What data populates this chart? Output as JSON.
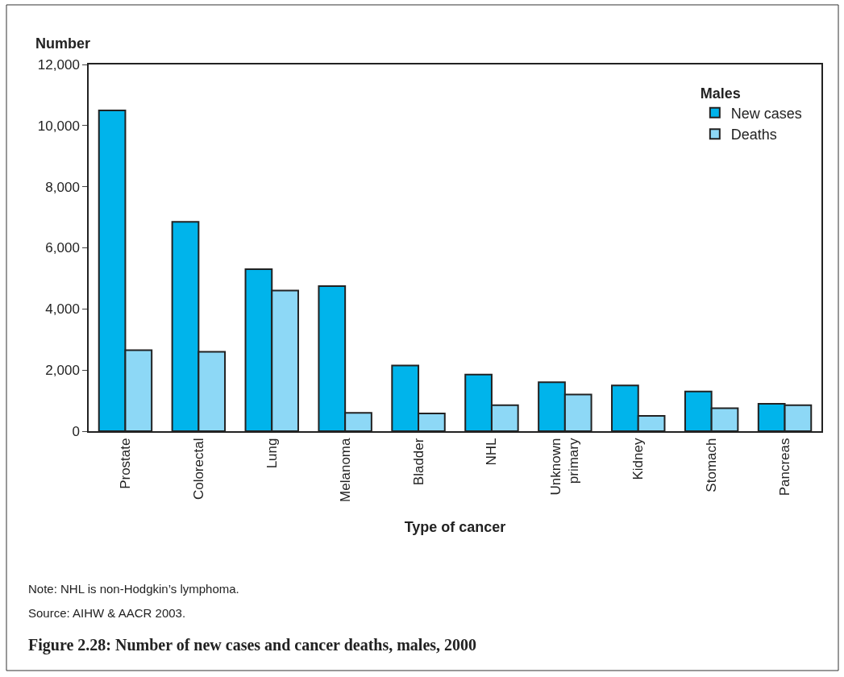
{
  "chart_data": {
    "type": "bar",
    "title": "Figure 2.28: Number of new cases and cancer deaths, males, 2000",
    "xlabel": "Type of cancer",
    "ylabel": "Number",
    "legend_title": "Males",
    "categories": [
      "Prostate",
      "Colorectal",
      "Lung",
      "Melanoma",
      "Bladder",
      "NHL",
      "Unknown primary",
      "Kidney",
      "Stomach",
      "Pancreas"
    ],
    "series": [
      {
        "name": "New cases",
        "color": "#00b4eb",
        "values": [
          10500,
          6850,
          5300,
          4750,
          2150,
          1850,
          1600,
          1500,
          1300,
          900
        ]
      },
      {
        "name": "Deaths",
        "color": "#8dd8f6",
        "values": [
          2650,
          2600,
          4600,
          600,
          580,
          850,
          1200,
          500,
          750,
          850
        ]
      }
    ],
    "ylim": [
      0,
      12000
    ],
    "yticks": [
      0,
      {
        "value": 2000,
        "label": "2,000"
      },
      {
        "value": 4000,
        "label": "4,000"
      },
      {
        "value": 6000,
        "label": "6,000"
      },
      {
        "value": 8000,
        "label": "8,000"
      },
      {
        "value": 10000,
        "label": "10,000"
      },
      {
        "value": 12000,
        "label": "12,000"
      }
    ],
    "legend": "top right",
    "annotations": [
      "Note: NHL is non-Hodgkin’s lymphoma.",
      "Source: AIHW & AACR 2003."
    ]
  }
}
